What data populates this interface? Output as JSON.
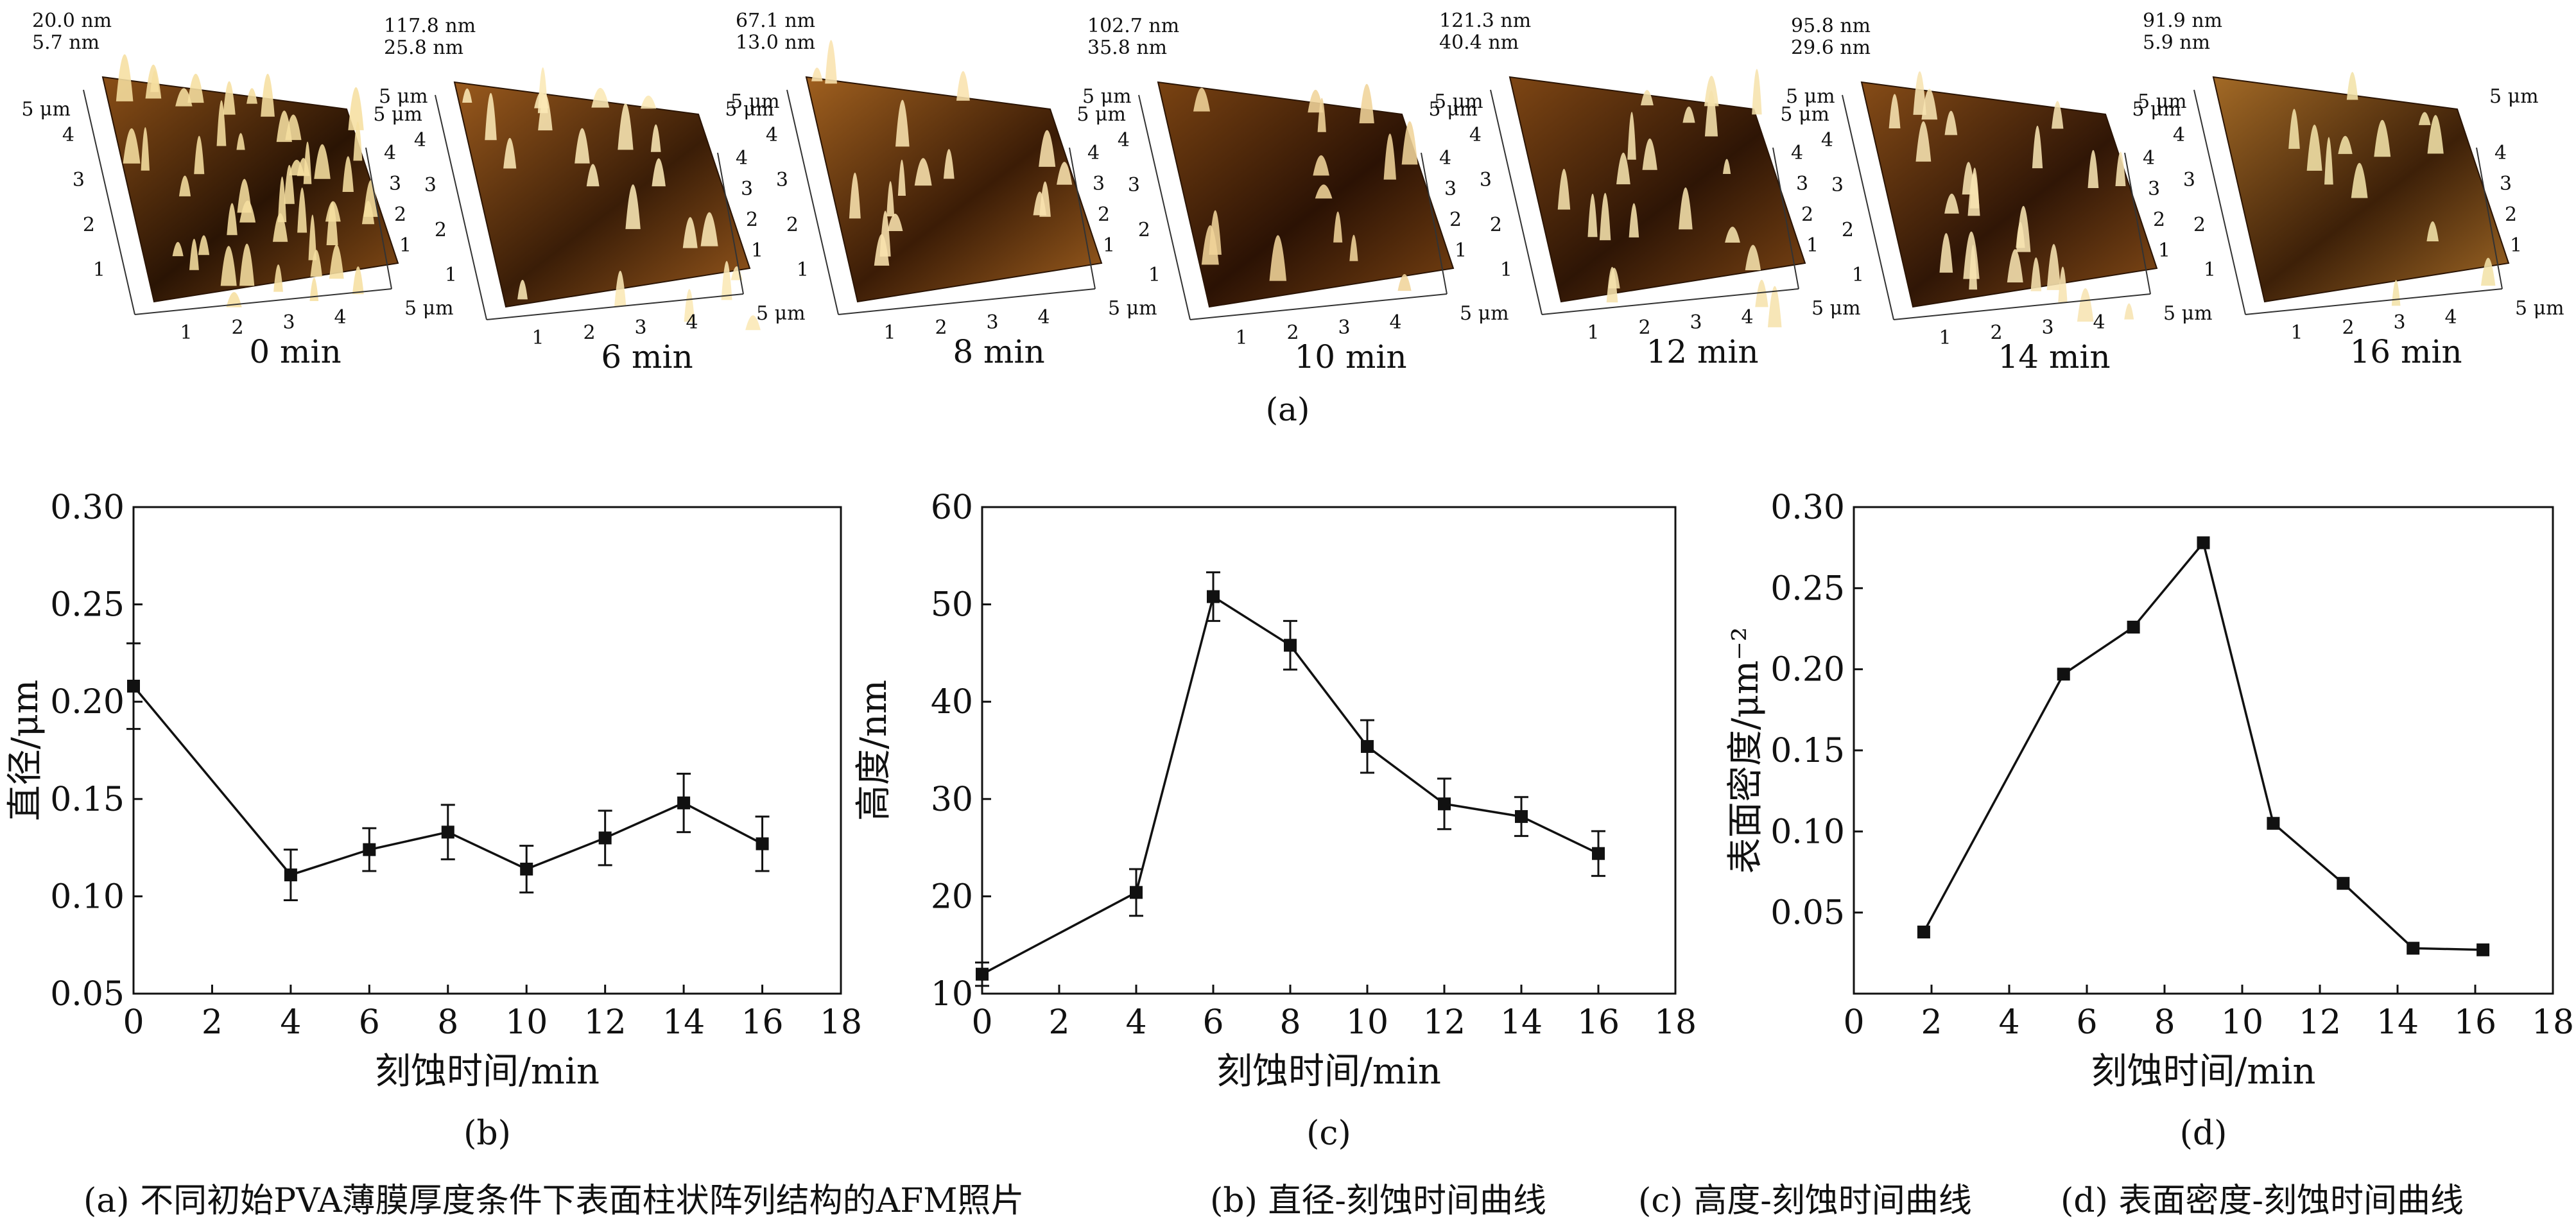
{
  "afm_panel": {
    "label": "(a)",
    "images": [
      {
        "time": "0 min",
        "zmax": "20.0 nm",
        "zmin": "5.7 nm",
        "palette": [
          "#2a1404",
          "#8a4f17",
          "#f6dfa0"
        ],
        "peaks": 46
      },
      {
        "time": "6 min",
        "zmax": "117.8 nm",
        "zmin": "25.8 nm",
        "palette": [
          "#3a1d07",
          "#9a5a1d",
          "#fbe8b5"
        ],
        "peaks": 22
      },
      {
        "time": "8 min",
        "zmax": "67.1 nm",
        "zmin": "13.0 nm",
        "palette": [
          "#3b1c06",
          "#a0601f",
          "#f9e3ae"
        ],
        "peaks": 16
      },
      {
        "time": "10 min",
        "zmax": "102.7 nm",
        "zmin": "35.8 nm",
        "palette": [
          "#2b1204",
          "#7a4312",
          "#f0d49a"
        ],
        "peaks": 14
      },
      {
        "time": "12 min",
        "zmax": "121.3 nm",
        "zmin": "40.4 nm",
        "palette": [
          "#2e1505",
          "#7e4614",
          "#f6e2ad"
        ],
        "peaks": 20
      },
      {
        "time": "14 min",
        "zmax": "95.8 nm",
        "zmin": "29.6 nm",
        "palette": [
          "#301606",
          "#864c17",
          "#f7e4b2"
        ],
        "peaks": 24
      },
      {
        "time": "16 min",
        "zmax": "91.9 nm",
        "zmin": "5.9 nm",
        "palette": [
          "#3d2008",
          "#a36a26",
          "#f3e2a8"
        ],
        "peaks": 12
      }
    ],
    "axis_unit": "μm",
    "axis_end_label": "5 μm",
    "axis_ticks": [
      "1",
      "2",
      "3",
      "4"
    ]
  },
  "chart_data": [
    {
      "type": "line",
      "panel": "(b)",
      "x": [
        0,
        4,
        6,
        8,
        10,
        12,
        14,
        16
      ],
      "y": [
        0.208,
        0.111,
        0.124,
        0.133,
        0.114,
        0.13,
        0.148,
        0.127
      ],
      "yerr": [
        0.022,
        0.013,
        0.011,
        0.014,
        0.012,
        0.014,
        0.015,
        0.014
      ],
      "xlabel": "刻蚀时间/min",
      "ylabel": "直径/μm",
      "xlim": [
        0,
        18
      ],
      "ylim": [
        0.05,
        0.3
      ],
      "xticks": [
        "0",
        "2",
        "4",
        "6",
        "8",
        "10",
        "12",
        "14",
        "16",
        "18"
      ],
      "yticks": [
        "0.05",
        "0.10",
        "0.15",
        "0.20",
        "0.25",
        "0.30"
      ],
      "grid": false,
      "marker": "square",
      "color": "#111111"
    },
    {
      "type": "line",
      "panel": "(c)",
      "x": [
        0,
        4,
        6,
        8,
        10,
        12,
        14,
        16
      ],
      "y": [
        12.0,
        20.4,
        50.8,
        45.8,
        35.4,
        29.5,
        28.2,
        24.4
      ],
      "yerr": [
        1.2,
        2.4,
        2.5,
        2.5,
        2.7,
        2.6,
        2.0,
        2.3
      ],
      "xlabel": "刻蚀时间/min",
      "ylabel": "高度/nm",
      "xlim": [
        0,
        18
      ],
      "ylim": [
        10,
        60
      ],
      "xticks": [
        "0",
        "2",
        "4",
        "6",
        "8",
        "10",
        "12",
        "14",
        "16",
        "18"
      ],
      "yticks": [
        "10",
        "20",
        "30",
        "40",
        "50",
        "60"
      ],
      "grid": false,
      "marker": "square",
      "color": "#111111"
    },
    {
      "type": "line",
      "panel": "(d)",
      "x": [
        1.8,
        5.4,
        7.2,
        9.0,
        10.8,
        12.6,
        14.4,
        16.2
      ],
      "y": [
        0.038,
        0.197,
        0.226,
        0.278,
        0.105,
        0.068,
        0.028,
        0.027
      ],
      "xlabel": "刻蚀时间/min",
      "ylabel": "表面密度/μm⁻²",
      "xlim": [
        0,
        18
      ],
      "ylim": [
        0.0,
        0.3
      ],
      "xticks": [
        "0",
        "2",
        "4",
        "6",
        "8",
        "10",
        "12",
        "14",
        "16",
        "18"
      ],
      "yticks": [
        "0.05",
        "0.10",
        "0.15",
        "0.20",
        "0.25",
        "0.30"
      ],
      "grid": false,
      "marker": "square",
      "color": "#111111"
    }
  ],
  "caption": {
    "a": "(a) 不同初始PVA薄膜厚度条件下表面柱状阵列结构的AFM照片",
    "b": "(b) 直径-刻蚀时间曲线",
    "c": "(c) 高度-刻蚀时间曲线",
    "d": "(d) 表面密度-刻蚀时间曲线"
  }
}
